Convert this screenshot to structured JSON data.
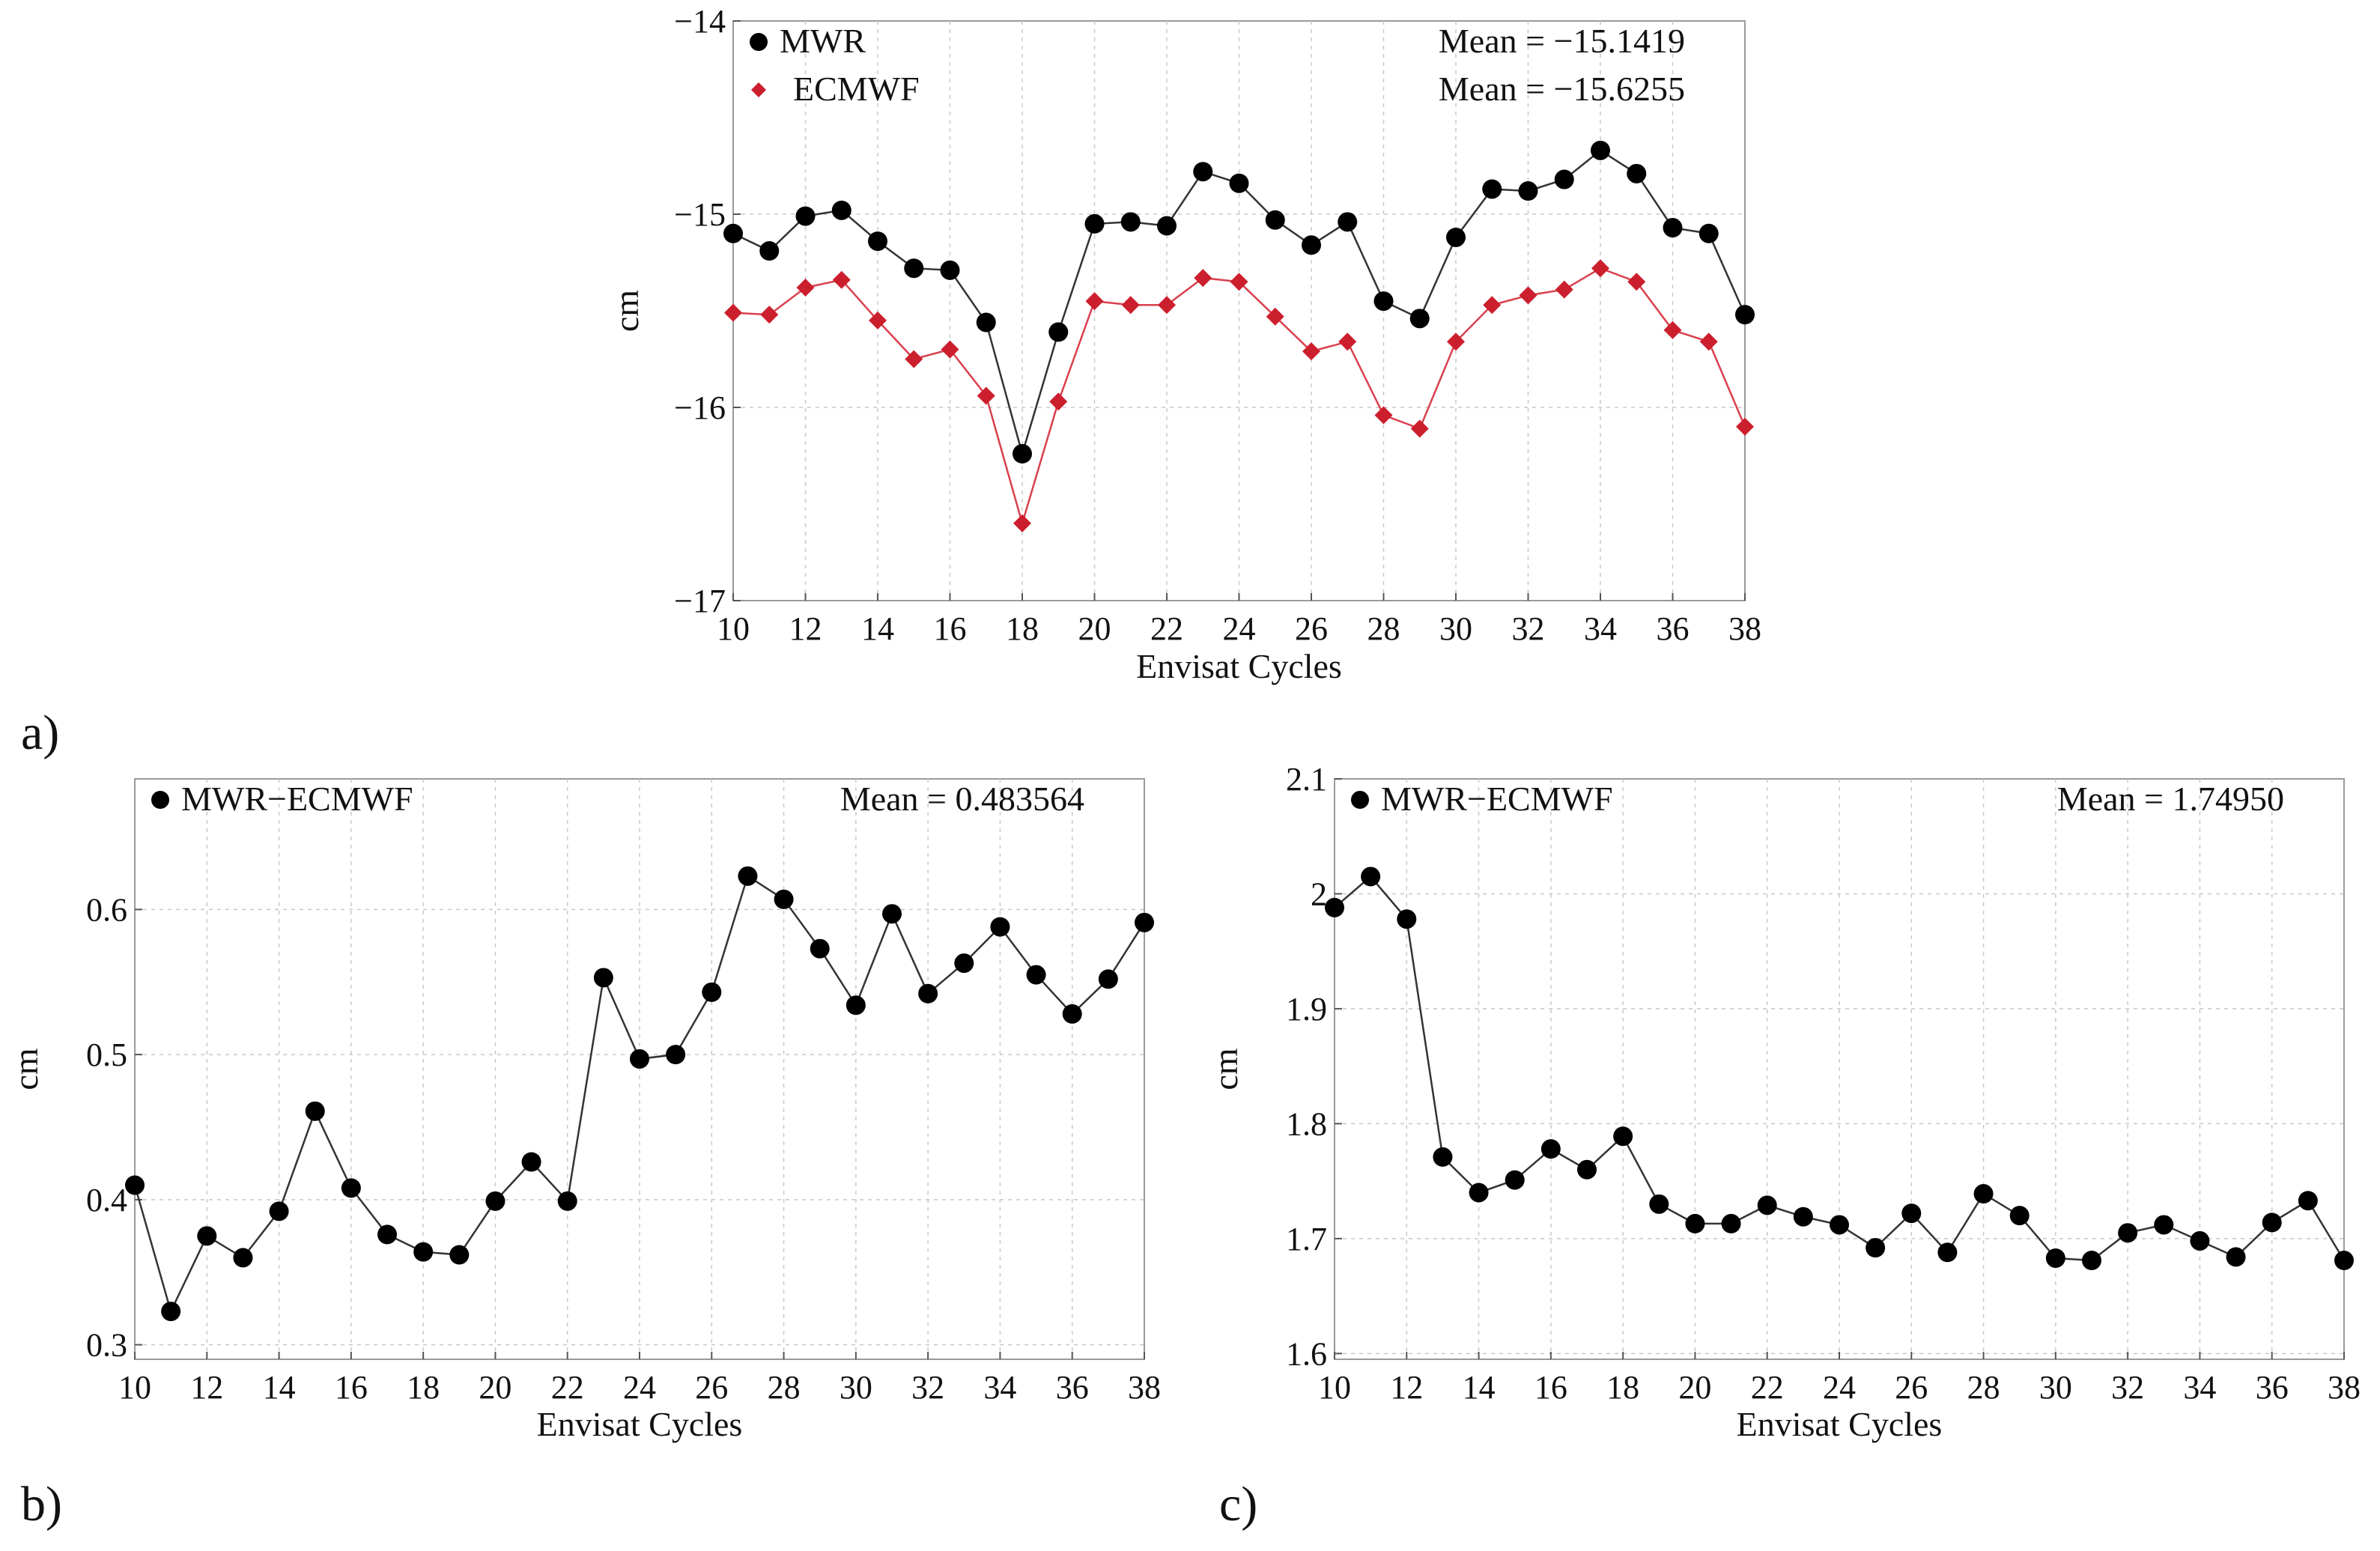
{
  "panel_letters": {
    "a": "a)",
    "b": "b)",
    "c": "c)"
  },
  "chart_data": [
    {
      "id": "a",
      "type": "line",
      "title": "",
      "xlabel": "Envisat Cycles",
      "ylabel": "cm",
      "xlim": [
        10,
        38
      ],
      "ylim": [
        -17,
        -14
      ],
      "xticks": [
        10,
        12,
        14,
        16,
        18,
        20,
        22,
        24,
        26,
        28,
        30,
        32,
        34,
        36,
        38
      ],
      "yticks": [
        -17,
        -16,
        -15,
        -14
      ],
      "ytick_labels": [
        "−17",
        "−16",
        "−15",
        "−14"
      ],
      "grid": true,
      "legend_position": "top-left",
      "x": [
        10,
        11,
        12,
        13,
        14,
        15,
        16,
        17,
        18,
        19,
        20,
        21,
        22,
        23,
        24,
        25,
        26,
        27,
        28,
        29,
        30,
        31,
        32,
        33,
        34,
        35,
        36,
        37,
        38
      ],
      "series": [
        {
          "name": "MWR",
          "marker": "circle",
          "color": "#000000",
          "line_color": "#333333",
          "mean_label": "Mean = −15.1419",
          "values": [
            -15.1,
            -15.19,
            -15.01,
            -14.98,
            -15.14,
            -15.28,
            -15.29,
            -15.56,
            -16.24,
            -15.61,
            -15.05,
            -15.04,
            -15.06,
            -14.78,
            -14.84,
            -15.03,
            -15.16,
            -15.04,
            -15.45,
            -15.54,
            -15.12,
            -14.87,
            -14.88,
            -14.82,
            -14.67,
            -14.79,
            -15.07,
            -15.1,
            -15.52
          ]
        },
        {
          "name": "ECMWF",
          "marker": "diamond",
          "color": "#cc1f2e",
          "line_color": "#d9404d",
          "mean_label": "Mean = −15.6255",
          "values": [
            -15.51,
            -15.52,
            -15.38,
            -15.34,
            -15.55,
            -15.75,
            -15.7,
            -15.94,
            -16.6,
            -15.97,
            -15.45,
            -15.47,
            -15.47,
            -15.33,
            -15.35,
            -15.53,
            -15.71,
            -15.66,
            -16.04,
            -16.11,
            -15.66,
            -15.47,
            -15.42,
            -15.39,
            -15.28,
            -15.35,
            -15.6,
            -15.66,
            -16.1
          ]
        }
      ]
    },
    {
      "id": "b",
      "type": "line",
      "title": "",
      "xlabel": "Envisat Cycles",
      "ylabel": "cm",
      "xlim": [
        10,
        38
      ],
      "ylim": [
        0.29,
        0.69
      ],
      "xticks": [
        10,
        12,
        14,
        16,
        18,
        20,
        22,
        24,
        26,
        28,
        30,
        32,
        34,
        36,
        38
      ],
      "yticks": [
        0.3,
        0.4,
        0.5,
        0.6
      ],
      "ytick_labels": [
        "0.3",
        "0.4",
        "0.5",
        "0.6"
      ],
      "grid": true,
      "legend_position": "top-left",
      "x": [
        10,
        11,
        12,
        13,
        14,
        15,
        16,
        17,
        18,
        19,
        20,
        21,
        22,
        23,
        24,
        25,
        26,
        27,
        28,
        29,
        30,
        31,
        32,
        33,
        34,
        35,
        36,
        37,
        38
      ],
      "series": [
        {
          "name": "MWR−ECMWF",
          "marker": "circle",
          "color": "#000000",
          "line_color": "#333333",
          "mean_label": "Mean = 0.483564",
          "values": [
            0.41,
            0.323,
            0.375,
            0.36,
            0.392,
            0.461,
            0.408,
            0.376,
            0.364,
            0.362,
            0.399,
            0.426,
            0.399,
            0.553,
            0.497,
            0.5,
            0.543,
            0.623,
            0.607,
            0.573,
            0.534,
            0.597,
            0.542,
            0.563,
            0.588,
            0.555,
            0.528,
            0.552,
            0.591
          ]
        }
      ]
    },
    {
      "id": "c",
      "type": "line",
      "title": "",
      "xlabel": "Envisat Cycles",
      "ylabel": "cm",
      "xlim": [
        10,
        38
      ],
      "ylim": [
        1.595,
        2.1
      ],
      "xticks": [
        10,
        12,
        14,
        16,
        18,
        20,
        22,
        24,
        26,
        28,
        30,
        32,
        34,
        36,
        38
      ],
      "yticks": [
        1.6,
        1.7,
        1.8,
        1.9,
        2.0,
        2.1
      ],
      "ytick_labels": [
        "1.6",
        "1.7",
        "1.8",
        "1.9",
        "2",
        "2.1"
      ],
      "grid": true,
      "legend_position": "top-left",
      "x": [
        10,
        11,
        12,
        13,
        14,
        15,
        16,
        17,
        18,
        19,
        20,
        21,
        22,
        23,
        24,
        25,
        26,
        27,
        28,
        29,
        30,
        31,
        32,
        33,
        34,
        35,
        36,
        37,
        38
      ],
      "series": [
        {
          "name": "MWR−ECMWF",
          "marker": "circle",
          "color": "#000000",
          "line_color": "#333333",
          "mean_label": "Mean = 1.74950",
          "values": [
            1.988,
            2.015,
            1.978,
            1.771,
            1.74,
            1.751,
            1.778,
            1.76,
            1.789,
            1.73,
            1.713,
            1.713,
            1.729,
            1.719,
            1.712,
            1.692,
            1.722,
            1.688,
            1.739,
            1.72,
            1.683,
            1.681,
            1.705,
            1.712,
            1.698,
            1.684,
            1.714,
            1.733,
            1.681
          ]
        }
      ]
    }
  ]
}
